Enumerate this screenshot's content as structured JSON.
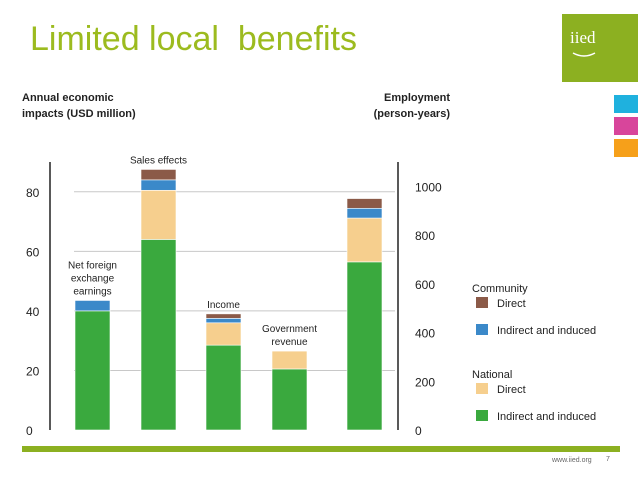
{
  "slide": {
    "title": "Limited local  benefits",
    "logo_text": "iied",
    "footer_url": "www.iied.org",
    "page_number": "7"
  },
  "colors": {
    "title": "#9cbb1f",
    "brand_green": "#8cb021",
    "side_cyan": "#1fb1de",
    "side_magenta": "#d8459b",
    "side_orange": "#f6a01a",
    "community_direct": "#8b5a48",
    "community_indirect": "#3b89c9",
    "national_direct": "#f6cf8e",
    "national_indirect": "#3aa93e"
  },
  "chart_data": {
    "type": "bar",
    "stacked": true,
    "left_axis": {
      "title_lines": [
        "Annual economic",
        "impacts (USD million)"
      ],
      "ylim": [
        0,
        90
      ],
      "ticks": [
        "0",
        "20",
        "40",
        "60",
        "80"
      ]
    },
    "right_axis": {
      "title_lines": [
        "Employment",
        "(person-years)"
      ],
      "ylim": [
        0,
        1100
      ],
      "ticks": [
        "0",
        "200",
        "400",
        "600",
        "800",
        "1000"
      ]
    },
    "grid": true,
    "legend": {
      "position": "right",
      "groups": [
        {
          "title": "Community",
          "items": [
            {
              "label": "Direct",
              "color_key": "community_direct"
            },
            {
              "label": "Indirect and induced",
              "color_key": "community_indirect"
            }
          ]
        },
        {
          "title": "National",
          "items": [
            {
              "label": "Direct",
              "color_key": "national_direct"
            },
            {
              "label": "Indirect and induced",
              "color_key": "national_indirect"
            }
          ]
        }
      ]
    },
    "series_order": [
      "national_indirect",
      "national_direct",
      "community_indirect",
      "community_direct"
    ],
    "bars": [
      {
        "label_lines": [
          "Net foreign",
          "exchange",
          "earnings"
        ],
        "axis": "left",
        "segments": {
          "national_indirect": 40,
          "national_direct": 0,
          "community_indirect": 3.5,
          "community_direct": 0
        }
      },
      {
        "label_lines": [
          "Sales effects"
        ],
        "axis": "left",
        "segments": {
          "national_indirect": 64,
          "national_direct": 16.5,
          "community_indirect": 3.5,
          "community_direct": 3.5
        }
      },
      {
        "label_lines": [
          "Income"
        ],
        "axis": "left",
        "segments": {
          "national_indirect": 28.5,
          "national_direct": 7.5,
          "community_indirect": 1.5,
          "community_direct": 1.5
        }
      },
      {
        "label_lines": [
          "Government",
          "revenue"
        ],
        "axis": "left",
        "segments": {
          "national_indirect": 20.5,
          "national_direct": 6,
          "community_indirect": 0,
          "community_direct": 0
        }
      },
      {
        "label_lines": [],
        "axis": "right",
        "segments": {
          "national_indirect": 690,
          "national_direct": 180,
          "community_indirect": 40,
          "community_direct": 40
        }
      }
    ]
  }
}
